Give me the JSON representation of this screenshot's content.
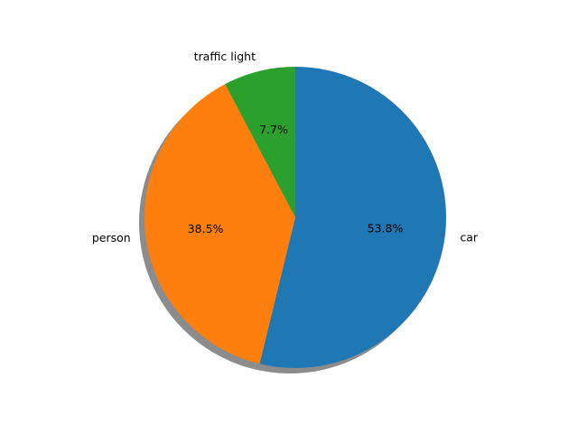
{
  "chart_data": {
    "type": "pie",
    "title": "",
    "categories": [
      "car",
      "person",
      "traffic light"
    ],
    "values": [
      53.8,
      38.5,
      7.7
    ],
    "labels": [
      "car",
      "person",
      "traffic light"
    ],
    "autopct": [
      "53.8%",
      "38.5%",
      "7.7%"
    ],
    "colors": [
      "#1f77b4",
      "#ff7f0e",
      "#2ca02c"
    ],
    "start_angle_deg": 90,
    "direction": "clockwise",
    "shadow": true,
    "legend": "none"
  }
}
